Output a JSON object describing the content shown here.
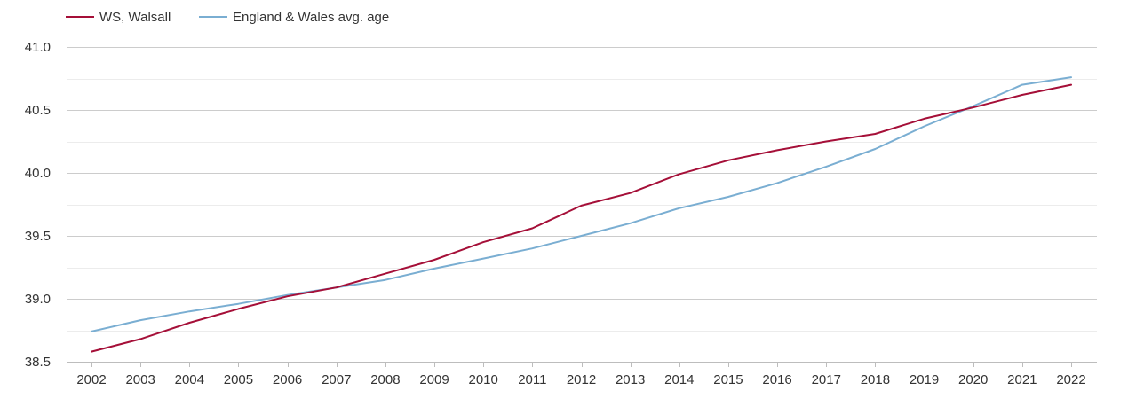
{
  "chart_data": {
    "type": "line",
    "title": "",
    "xlabel": "",
    "ylabel": "",
    "categories": [
      "2002",
      "2003",
      "2004",
      "2005",
      "2006",
      "2007",
      "2008",
      "2009",
      "2010",
      "2011",
      "2012",
      "2013",
      "2014",
      "2015",
      "2016",
      "2017",
      "2018",
      "2019",
      "2020",
      "2021",
      "2022"
    ],
    "ylim": [
      38.5,
      41.0
    ],
    "y_ticks": [
      "38.5",
      "39.0",
      "39.5",
      "40.0",
      "40.5",
      "41.0"
    ],
    "grid": true,
    "legend_position": "top-left",
    "series": [
      {
        "name": "WS, Walsall",
        "color": "#a50f38",
        "values": [
          38.58,
          38.68,
          38.81,
          38.92,
          39.02,
          39.09,
          39.2,
          39.31,
          39.45,
          39.56,
          39.74,
          39.84,
          39.99,
          40.1,
          40.18,
          40.25,
          40.31,
          40.43,
          40.52,
          40.62,
          40.7
        ]
      },
      {
        "name": "England & Wales avg. age",
        "color": "#7aaed2",
        "values": [
          38.74,
          38.83,
          38.9,
          38.96,
          39.03,
          39.09,
          39.15,
          39.24,
          39.32,
          39.4,
          39.5,
          39.6,
          39.72,
          39.81,
          39.92,
          40.05,
          40.19,
          40.37,
          40.53,
          40.7,
          40.76
        ]
      }
    ]
  }
}
